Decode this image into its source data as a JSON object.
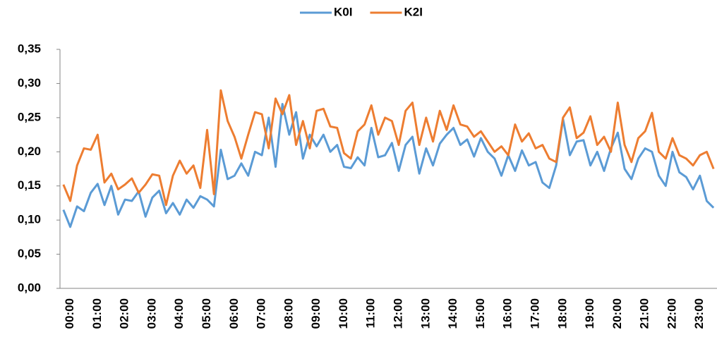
{
  "chart_data": {
    "type": "line",
    "categories": [
      null,
      "00:00",
      null,
      null,
      null,
      "01:00",
      null,
      null,
      null,
      "02:00",
      null,
      null,
      null,
      "03:00",
      null,
      null,
      null,
      "04:00",
      null,
      null,
      null,
      "05:00",
      null,
      null,
      null,
      "06:00",
      null,
      null,
      null,
      "07:00",
      null,
      null,
      null,
      "08:00",
      null,
      null,
      null,
      "09:00",
      null,
      null,
      null,
      "10:00",
      null,
      null,
      null,
      "11:00",
      null,
      null,
      null,
      "12:00",
      null,
      null,
      null,
      "13:00",
      null,
      null,
      null,
      "14:00",
      null,
      null,
      null,
      "15:00",
      null,
      null,
      null,
      "16:00",
      null,
      null,
      null,
      "17:00",
      null,
      null,
      null,
      "18:00",
      null,
      null,
      null,
      "19:00",
      null,
      null,
      null,
      "20:00",
      null,
      null,
      null,
      "21:00",
      null,
      null,
      null,
      "22:00",
      null,
      null,
      null,
      "23:00",
      null,
      null
    ],
    "series": [
      {
        "name": "K0I",
        "color": "#5b9bd5",
        "values": [
          0.115,
          0.09,
          0.12,
          0.113,
          0.14,
          0.153,
          0.122,
          0.15,
          0.108,
          0.13,
          0.128,
          0.142,
          0.105,
          0.133,
          0.143,
          0.11,
          0.125,
          0.108,
          0.13,
          0.118,
          0.135,
          0.13,
          0.12,
          0.203,
          0.16,
          0.165,
          0.183,
          0.165,
          0.2,
          0.195,
          0.25,
          0.178,
          0.27,
          0.225,
          0.258,
          0.19,
          0.225,
          0.208,
          0.225,
          0.2,
          0.21,
          0.178,
          0.176,
          0.192,
          0.18,
          0.235,
          0.192,
          0.195,
          0.213,
          0.172,
          0.21,
          0.222,
          0.168,
          0.205,
          0.18,
          0.212,
          0.225,
          0.235,
          0.21,
          0.218,
          0.193,
          0.22,
          0.2,
          0.19,
          0.165,
          0.195,
          0.172,
          0.202,
          0.18,
          0.185,
          0.155,
          0.147,
          0.18,
          0.248,
          0.195,
          0.215,
          0.217,
          0.18,
          0.2,
          0.172,
          0.205,
          0.228,
          0.175,
          0.16,
          0.19,
          0.205,
          0.2,
          0.165,
          0.15,
          0.2,
          0.17,
          0.163,
          0.145,
          0.165,
          0.128,
          0.118
        ]
      },
      {
        "name": "K2I",
        "color": "#ed7d31",
        "values": [
          0.152,
          0.128,
          0.18,
          0.205,
          0.203,
          0.225,
          0.155,
          0.168,
          0.145,
          0.152,
          0.161,
          0.14,
          0.152,
          0.167,
          0.165,
          0.122,
          0.165,
          0.187,
          0.168,
          0.18,
          0.147,
          0.232,
          0.138,
          0.29,
          0.245,
          0.222,
          0.19,
          0.225,
          0.258,
          0.255,
          0.205,
          0.278,
          0.255,
          0.283,
          0.21,
          0.245,
          0.205,
          0.26,
          0.263,
          0.237,
          0.235,
          0.198,
          0.19,
          0.23,
          0.24,
          0.268,
          0.225,
          0.25,
          0.245,
          0.21,
          0.26,
          0.272,
          0.21,
          0.25,
          0.215,
          0.26,
          0.232,
          0.268,
          0.24,
          0.237,
          0.222,
          0.23,
          0.215,
          0.2,
          0.208,
          0.195,
          0.24,
          0.215,
          0.227,
          0.205,
          0.21,
          0.19,
          0.185,
          0.25,
          0.265,
          0.22,
          0.228,
          0.252,
          0.21,
          0.222,
          0.2,
          0.272,
          0.21,
          0.185,
          0.22,
          0.23,
          0.257,
          0.2,
          0.19,
          0.22,
          0.195,
          0.19,
          0.18,
          0.195,
          0.2,
          0.175
        ]
      }
    ],
    "ylim": [
      0,
      0.35
    ],
    "yticks": [
      {
        "value": 0,
        "label": "0,00"
      },
      {
        "value": 0.05,
        "label": "0,05"
      },
      {
        "value": 0.1,
        "label": "0,10"
      },
      {
        "value": 0.15,
        "label": "0,15"
      },
      {
        "value": 0.2,
        "label": "0,20"
      },
      {
        "value": 0.25,
        "label": "0,25"
      },
      {
        "value": 0.3,
        "label": "0,30"
      },
      {
        "value": 0.35,
        "label": "0,35"
      }
    ],
    "grid": false,
    "legend": "top"
  }
}
